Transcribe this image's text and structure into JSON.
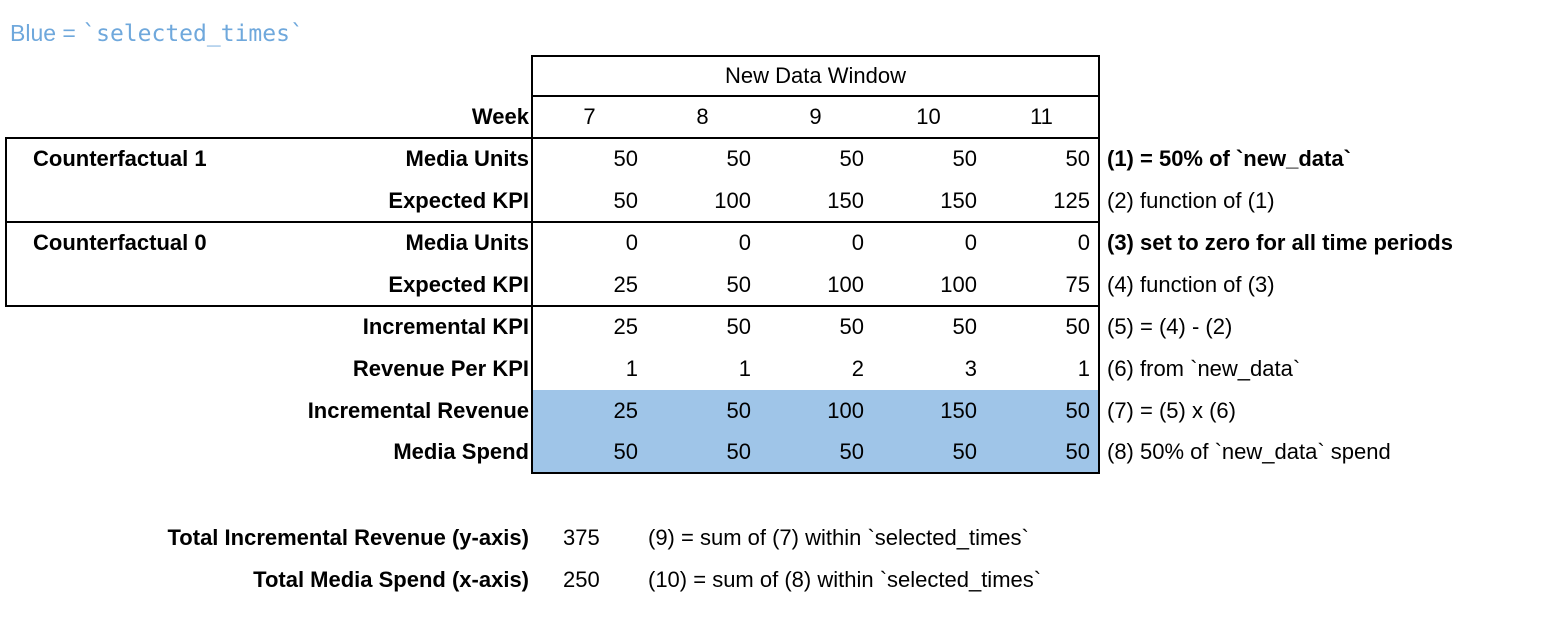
{
  "legend": {
    "prefix": "Blue = ",
    "code": "`selected_times`"
  },
  "colors": {
    "highlight_blue": "#9FC5E8",
    "legend_blue": "#6FA8DC"
  },
  "table": {
    "header": "New Data Window",
    "week_label": "Week",
    "weeks": [
      "7",
      "8",
      "9",
      "10",
      "11"
    ],
    "group_labels": [
      "Counterfactual 1",
      "Counterfactual 0"
    ],
    "rows": [
      {
        "label": "Media Units",
        "values": [
          "50",
          "50",
          "50",
          "50",
          "50"
        ],
        "note": "(1) = 50% of `new_data`",
        "note_bold": true,
        "highlight": false
      },
      {
        "label": "Expected KPI",
        "values": [
          "50",
          "100",
          "150",
          "150",
          "125"
        ],
        "note": "(2) function of (1)",
        "note_bold": false,
        "highlight": false
      },
      {
        "label": "Media Units",
        "values": [
          "0",
          "0",
          "0",
          "0",
          "0"
        ],
        "note": "(3) set to zero for all time periods",
        "note_bold": true,
        "highlight": false
      },
      {
        "label": "Expected KPI",
        "values": [
          "25",
          "50",
          "100",
          "100",
          "75"
        ],
        "note": "(4) function of (3)",
        "note_bold": false,
        "highlight": false
      },
      {
        "label": "Incremental KPI",
        "values": [
          "25",
          "50",
          "50",
          "50",
          "50"
        ],
        "note": "(5) = (4) - (2)",
        "note_bold": false,
        "highlight": false
      },
      {
        "label": "Revenue Per KPI",
        "values": [
          "1",
          "1",
          "2",
          "3",
          "1"
        ],
        "note": "(6) from `new_data`",
        "note_bold": false,
        "highlight": false
      },
      {
        "label": "Incremental Revenue",
        "values": [
          "25",
          "50",
          "100",
          "150",
          "50"
        ],
        "note": "(7) = (5) x (6)",
        "note_bold": false,
        "highlight": true
      },
      {
        "label": "Media Spend",
        "values": [
          "50",
          "50",
          "50",
          "50",
          "50"
        ],
        "note": "(8) 50% of `new_data` spend",
        "note_bold": false,
        "highlight": true
      }
    ]
  },
  "totals": [
    {
      "label": "Total Incremental Revenue (y-axis)",
      "value": "375",
      "note": "(9) = sum of (7) within `selected_times`"
    },
    {
      "label": "Total Media Spend (x-axis)",
      "value": "250",
      "note": "(10) = sum of (8) within `selected_times`"
    }
  ],
  "chart_data": {
    "type": "table",
    "title": "New Data Window",
    "columns": [
      "Week 7",
      "Week 8",
      "Week 9",
      "Week 10",
      "Week 11"
    ],
    "rows": [
      {
        "group": "Counterfactual 1",
        "metric": "Media Units",
        "values": [
          50,
          50,
          50,
          50,
          50
        ]
      },
      {
        "group": "Counterfactual 1",
        "metric": "Expected KPI",
        "values": [
          50,
          100,
          150,
          150,
          125
        ]
      },
      {
        "group": "Counterfactual 0",
        "metric": "Media Units",
        "values": [
          0,
          0,
          0,
          0,
          0
        ]
      },
      {
        "group": "Counterfactual 0",
        "metric": "Expected KPI",
        "values": [
          25,
          50,
          100,
          100,
          75
        ]
      },
      {
        "group": "",
        "metric": "Incremental KPI",
        "values": [
          25,
          50,
          50,
          50,
          50
        ]
      },
      {
        "group": "",
        "metric": "Revenue Per KPI",
        "values": [
          1,
          1,
          2,
          3,
          1
        ]
      },
      {
        "group": "",
        "metric": "Incremental Revenue",
        "values": [
          25,
          50,
          100,
          150,
          50
        ],
        "highlighted": true
      },
      {
        "group": "",
        "metric": "Media Spend",
        "values": [
          50,
          50,
          50,
          50,
          50
        ],
        "highlighted": true
      }
    ],
    "totals": {
      "Total Incremental Revenue (y-axis)": 375,
      "Total Media Spend (x-axis)": 250
    }
  }
}
